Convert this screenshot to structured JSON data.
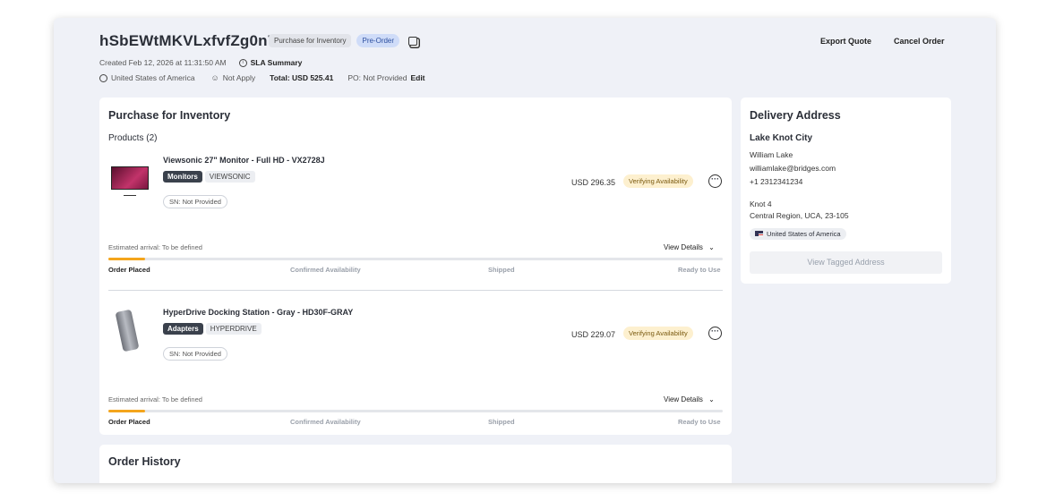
{
  "header": {
    "order_id": "hSbEWtMKVLxfvfZg0n72",
    "type_chip": "Purchase for Inventory",
    "preorder_chip": "Pre-Order",
    "created": "Created Feb 12, 2026 at 11:31:50 AM",
    "sla": "SLA Summary",
    "country": "United States of America",
    "user": "Not Apply",
    "total": "Total: USD 525.41",
    "po": "PO: Not Provided",
    "edit": "Edit",
    "export_quote": "Export Quote",
    "cancel_order": "Cancel Order"
  },
  "main": {
    "title": "Purchase for Inventory",
    "products_label": "Products (2)",
    "products": [
      {
        "name": "Viewsonic 27\" Monitor - Full HD - VX2728J",
        "category": "Monitors",
        "brand": "VIEWSONIC",
        "sn": "SN: Not Provided",
        "price": "USD 296.35",
        "status": "Verifying Availability",
        "eta": "Estimated arrival: To be defined",
        "view_details": "View Details",
        "progress_percent": 6,
        "steps": [
          "Order Placed",
          "Confirmed Availability",
          "Shipped",
          "Ready to Use"
        ]
      },
      {
        "name": "HyperDrive Docking Station - Gray - HD30F-GRAY",
        "category": "Adapters",
        "brand": "HYPERDRIVE",
        "sn": "SN: Not Provided",
        "price": "USD 229.07",
        "status": "Verifying Availability",
        "eta": "Estimated arrival: To be defined",
        "view_details": "View Details",
        "progress_percent": 6,
        "steps": [
          "Order Placed",
          "Confirmed Availability",
          "Shipped",
          "Ready to Use"
        ]
      }
    ]
  },
  "delivery": {
    "title": "Delivery Address",
    "city": "Lake Knot City",
    "name": "William Lake",
    "email": "williamlake@bridges.com",
    "phone": "+1 2312341234",
    "line1": "Knot 4",
    "line2": "Central Region, UCA, 23-105",
    "country": "United States of America",
    "view_tagged": "View Tagged Address"
  },
  "history": {
    "title": "Order History"
  },
  "colors": {
    "progress": "#f4a51c",
    "status_bg": "#fdf0cf",
    "preorder_bg": "#cfdcf8"
  }
}
